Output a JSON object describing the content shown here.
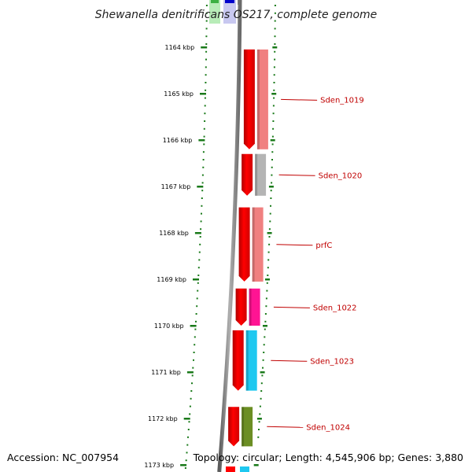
{
  "title": "Shewanella denitrificans OS217, complete genome",
  "accession": "Accession: NC_007954",
  "topology": "Topology: circular; Length: 4,545,906 bp; Genes: 3,880",
  "colors": {
    "forward_cds": "#ff0000",
    "tick": "#1a7a1a",
    "backbone": "#808080",
    "gene_label": "#c00000"
  },
  "ticks": [
    {
      "label": "1164 kbp",
      "kbp": 1164
    },
    {
      "label": "1165 kbp",
      "kbp": 1165
    },
    {
      "label": "1166 kbp",
      "kbp": 1166
    },
    {
      "label": "1167 kbp",
      "kbp": 1167
    },
    {
      "label": "1168 kbp",
      "kbp": 1168
    },
    {
      "label": "1169 kbp",
      "kbp": 1169
    },
    {
      "label": "1170 kbp",
      "kbp": 1170
    },
    {
      "label": "1171 kbp",
      "kbp": 1171
    },
    {
      "label": "1172 kbp",
      "kbp": 1172
    },
    {
      "label": "1173 kbp",
      "kbp": 1173
    }
  ],
  "genes": [
    {
      "name": "Sden_1019",
      "start_kbp": 1164.05,
      "end_kbp": 1166.2,
      "cog_color": "#f08080"
    },
    {
      "name": "Sden_1020",
      "start_kbp": 1166.3,
      "end_kbp": 1167.2,
      "cog_color": "#b4b4b4"
    },
    {
      "name": "prfC",
      "start_kbp": 1167.45,
      "end_kbp": 1169.05,
      "cog_color": "#f08080"
    },
    {
      "name": "Sden_1022",
      "start_kbp": 1169.2,
      "end_kbp": 1170.0,
      "cog_color": "#ff1493"
    },
    {
      "name": "Sden_1023",
      "start_kbp": 1170.1,
      "end_kbp": 1171.4,
      "cog_color": "#1ec8f0"
    },
    {
      "name": "Sden_1024",
      "start_kbp": 1171.75,
      "end_kbp": 1172.6,
      "cog_color": "#6b8e23"
    }
  ]
}
